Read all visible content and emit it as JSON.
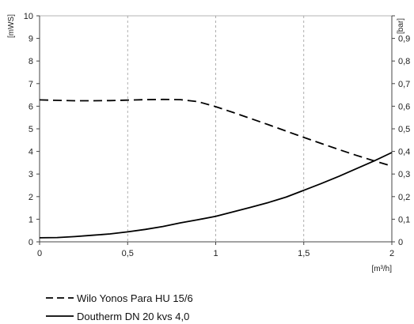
{
  "chart_data": {
    "type": "line",
    "title": "",
    "x": [
      0,
      0.1,
      0.2,
      0.3,
      0.4,
      0.5,
      0.6,
      0.7,
      0.8,
      0.9,
      1.0,
      1.1,
      1.2,
      1.3,
      1.4,
      1.5,
      1.6,
      1.7,
      1.8,
      1.9,
      2.0
    ],
    "x_label": "[m³/h]",
    "x_ticks": [
      "0",
      "0,5",
      "1",
      "1,5",
      "2"
    ],
    "x_tick_values": [
      0,
      0.5,
      1,
      1.5,
      2
    ],
    "xlim": [
      0,
      2
    ],
    "y_left_label": "[mWS]",
    "y_left_lim": [
      0,
      10
    ],
    "y_left_ticks": [
      "0",
      "1",
      "2",
      "3",
      "4",
      "5",
      "6",
      "7",
      "8",
      "9",
      "10"
    ],
    "y_right_label": "[bar]",
    "y_right_lim": [
      0,
      1
    ],
    "y_right_ticks": [
      "0",
      "0,1",
      "0,2",
      "0,3",
      "0,4",
      "0,5",
      "0,6",
      "0,7",
      "0,8",
      "0,9",
      "1"
    ],
    "grid": "vertical dashed",
    "legend_position": "bottom-left",
    "series": [
      {
        "name": "Wilo Yonos Para HU 15/6",
        "style": "dashed",
        "color": "#000000",
        "values": [
          6.28,
          6.26,
          6.24,
          6.24,
          6.25,
          6.27,
          6.29,
          6.3,
          6.29,
          6.2,
          5.98,
          5.72,
          5.45,
          5.18,
          4.9,
          4.62,
          4.35,
          4.08,
          3.82,
          3.58,
          3.35
        ]
      },
      {
        "name": "Doutherm DN 20 kvs 4,0",
        "style": "solid",
        "color": "#000000",
        "values": [
          0.18,
          0.19,
          0.23,
          0.29,
          0.35,
          0.44,
          0.55,
          0.68,
          0.84,
          0.98,
          1.13,
          1.33,
          1.53,
          1.74,
          1.98,
          2.28,
          2.58,
          2.9,
          3.24,
          3.58,
          3.95
        ]
      }
    ]
  }
}
